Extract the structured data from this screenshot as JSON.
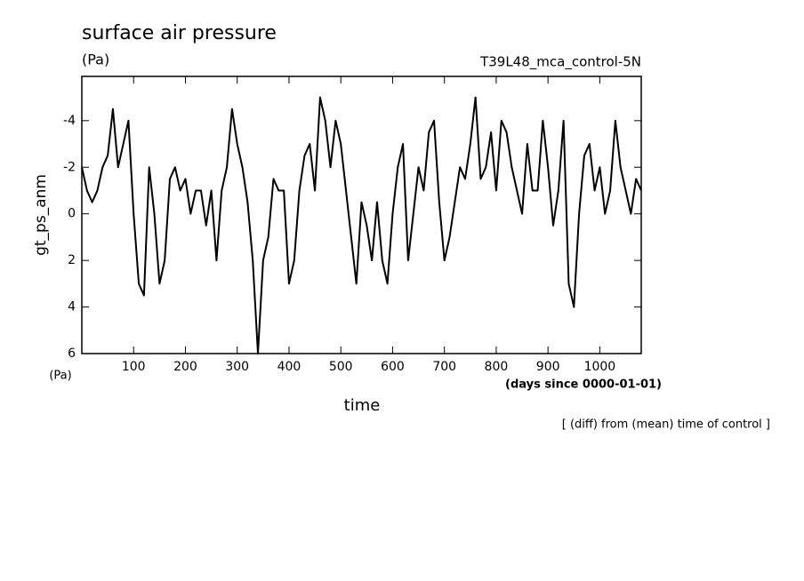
{
  "chart_data": {
    "type": "line",
    "title": "surface air pressure",
    "title_unit": "(Pa)",
    "subtitle": "T39L48_mca_control-5N",
    "y_label": "gt_ps_anm",
    "y_unit": "(Pa)",
    "x_label": "time",
    "x_unit": "(days since 0000-01-01)",
    "note": "[ (diff) from (mean) time of control ]",
    "xlim": [
      0,
      1080
    ],
    "xticks": [
      100,
      200,
      300,
      400,
      500,
      600,
      700,
      800,
      900,
      1000
    ],
    "ylim": [
      6,
      -5.9
    ],
    "yticks": [
      -4,
      -2,
      0,
      2,
      4,
      6
    ],
    "color": "#000000",
    "x": [
      0,
      10,
      20,
      30,
      40,
      50,
      60,
      70,
      80,
      90,
      100,
      110,
      120,
      130,
      140,
      150,
      160,
      170,
      180,
      190,
      200,
      210,
      220,
      230,
      240,
      250,
      260,
      270,
      280,
      290,
      300,
      310,
      320,
      330,
      340,
      350,
      360,
      370,
      380,
      390,
      400,
      410,
      420,
      430,
      440,
      450,
      460,
      470,
      480,
      490,
      500,
      510,
      520,
      530,
      540,
      550,
      560,
      570,
      580,
      590,
      600,
      610,
      620,
      630,
      640,
      650,
      660,
      670,
      680,
      690,
      700,
      710,
      720,
      730,
      740,
      750,
      760,
      770,
      780,
      790,
      800,
      810,
      820,
      830,
      840,
      850,
      860,
      870,
      880,
      890,
      900,
      910,
      920,
      930,
      940,
      950,
      960,
      970,
      980,
      990,
      1000,
      1010,
      1020,
      1030,
      1040,
      1050,
      1060,
      1070,
      1080
    ],
    "values": [
      -2,
      -1,
      -0.5,
      -1,
      -2,
      -2.5,
      -4.5,
      -2,
      -3,
      -4,
      0,
      3,
      3.5,
      -2,
      0,
      3,
      2,
      -1.5,
      -2,
      -1,
      -1.5,
      0,
      -1,
      -1,
      0.5,
      -1,
      2,
      -1,
      -2,
      -4.5,
      -3,
      -2,
      -0.5,
      2,
      6,
      2,
      1,
      -1.5,
      -1,
      -1,
      3,
      2,
      -1,
      -2.5,
      -3,
      -1,
      -5,
      -4,
      -2,
      -4,
      -3,
      -1,
      1,
      3,
      -0.5,
      0.5,
      2,
      -0.5,
      2,
      3,
      0,
      -2,
      -3,
      2,
      0,
      -2,
      -1,
      -3.5,
      -4,
      -0.5,
      2,
      1,
      -0.5,
      -2,
      -1.5,
      -3,
      -5,
      -1.5,
      -2,
      -3.5,
      -1,
      -4,
      -3.5,
      -2,
      -1,
      0,
      -3,
      -1,
      -1,
      -4,
      -2,
      0.5,
      -1,
      -4,
      3,
      4,
      0,
      -2.5,
      -3,
      -1,
      -2,
      0,
      -1,
      -4,
      -2,
      -1,
      0,
      -1.5,
      -1
    ]
  }
}
